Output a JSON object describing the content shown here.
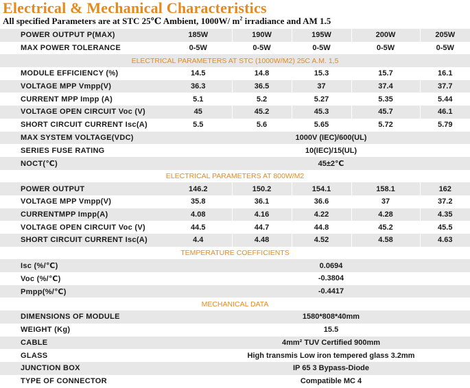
{
  "title": "Electrical & Mechanical Characteristics",
  "subtitle_main": "All specified Parameters are at STC 25℃ Ambient, 1000W/ m",
  "subtitle_sup": "2",
  "subtitle_tail": " irradiance and AM 1.5",
  "header": {
    "label": "POWER OUTPUT P(MAX)",
    "values": [
      "185W",
      "190W",
      "195W",
      "200W",
      "205W"
    ]
  },
  "tolerance": {
    "label": "MAX POWER TOLERANCE",
    "values": [
      "0-5W",
      "0-5W",
      "0-5W",
      "0-5W",
      "0-5W"
    ]
  },
  "section_stc": "ELECTRICAL PARAMETERS AT STC (1000W/M2) 25C A.M. 1,5",
  "stc_rows": [
    {
      "label": "MODULE EFFICIENCY (%)",
      "values": [
        "14.5",
        "14.8",
        "15.3",
        "15.7",
        "16.1"
      ]
    },
    {
      "label": "VOLTAGE MPP Vmpp(V)",
      "values": [
        "36.3",
        "36.5",
        "37",
        "37.4",
        "37.7"
      ]
    },
    {
      "label": "CURRENT MPP Impp (A)",
      "values": [
        "5.1",
        "5.2",
        "5.27",
        "5.35",
        "5.44"
      ]
    },
    {
      "label": "VOLTAGE OPEN CIRCUIT Voc (V)",
      "values": [
        "45",
        "45.2",
        "45.3",
        "45.7",
        "46.1"
      ]
    },
    {
      "label": "SHORT CIRCUIT CURRENT Isc(A)",
      "values": [
        "5.5",
        "5.6",
        "5.65",
        "5.72",
        "5.79"
      ]
    }
  ],
  "system_rows": [
    {
      "label": "MAX SYSTEM VOLTAGE(VDC)",
      "value": "1000V (IEC)/600(UL)"
    },
    {
      "label": "SERIES FUSE RATING",
      "value": "10(IEC)/15(UL)"
    },
    {
      "label": "NOCT(℃)",
      "value": "45±2℃"
    }
  ],
  "section_800": "ELECTRICAL PARAMETERS AT 800W/M2",
  "rows_800": [
    {
      "label": "POWER OUTPUT",
      "values": [
        "146.2",
        "150.2",
        "154.1",
        "158.1",
        "162"
      ]
    },
    {
      "label": "VOLTAGE MPP Vmpp(V)",
      "values": [
        "35.8",
        "36.1",
        "36.6",
        "37",
        "37.2"
      ]
    },
    {
      "label": "CURRENTMPP Impp(A)",
      "values": [
        "4.08",
        "4.16",
        "4.22",
        "4.28",
        "4.35"
      ]
    },
    {
      "label": "VOLTAGE OPEN CIRCUIT Voc (V)",
      "values": [
        "44.5",
        "44.7",
        "44.8",
        "45.2",
        "45.5"
      ]
    },
    {
      "label": "SHORT CIRCUIT CURRENT Isc(A)",
      "values": [
        "4.4",
        "4.48",
        "4.52",
        "4.58",
        "4.63"
      ]
    }
  ],
  "section_temp": "TEMPERATURE COEFFICIENTS",
  "temp_rows": [
    {
      "label": "Isc (%/℃)",
      "value": "0.0694"
    },
    {
      "label": "Voc (%/℃)",
      "value": "-0.3804"
    },
    {
      "label": "Pmpp(%/℃)",
      "value": "-0.4417"
    }
  ],
  "section_mech": "MECHANICAL DATA",
  "mech_rows": [
    {
      "label": "DIMENSIONS OF MODULE",
      "value": "1580*808*40mm"
    },
    {
      "label": "WEIGHT (Kg)",
      "value": "15.5"
    },
    {
      "label": "CABLE",
      "value": "4mm² TUV Certified 900mm"
    },
    {
      "label": "GLASS",
      "value": "High transmis Low iron tempered glass 3.2mm"
    },
    {
      "label": "JUNCTION BOX",
      "value": "IP 65 3 Bypass-Diode"
    },
    {
      "label": "TYPE OF CONNECTOR",
      "value": "Compatible MC 4"
    }
  ]
}
